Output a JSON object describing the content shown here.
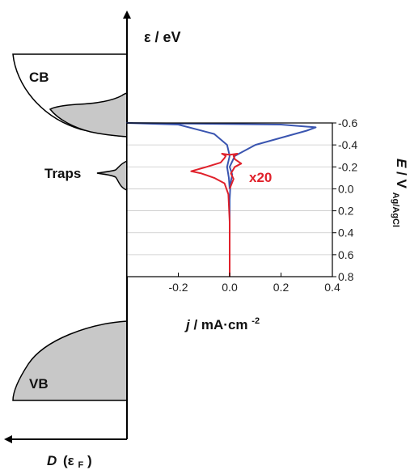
{
  "chart_data": {
    "type": "line",
    "energy_axis_label": "ε / eV",
    "dos_axis_label_main": "D",
    "dos_axis_label_paren": "(ε",
    "dos_axis_label_sub": "F",
    "dos_axis_label_close": ")",
    "band_labels": {
      "cb": "CB",
      "traps": "Traps",
      "vb": "VB"
    },
    "inset": {
      "xlabel_j": "j",
      "xlabel_rest": " / mA·cm",
      "xlabel_sup": "-2",
      "ylabel_E": "E",
      "ylabel_rest": " / V",
      "ylabel_sub": "Ag/AgCl",
      "xlim": [
        -0.4,
        0.4
      ],
      "ylim": [
        0.8,
        -0.6
      ],
      "xticks": [
        "-0.2",
        "0.0",
        "0.2",
        "0.4"
      ],
      "xtick_values": [
        -0.2,
        0.0,
        0.2,
        0.4
      ],
      "yticks": [
        "-0.6",
        "-0.4",
        "-0.2",
        "0.0",
        "0.2",
        "0.4",
        "0.6",
        "0.8"
      ],
      "ytick_values": [
        -0.6,
        -0.4,
        -0.2,
        0.0,
        0.2,
        0.4,
        0.6,
        0.8
      ],
      "grid": true,
      "annotation": "x20",
      "series": [
        {
          "color": "#3a55b0",
          "points": [
            [
              0.0,
              0.8
            ],
            [
              0.0,
              0.4
            ],
            [
              0.0,
              0.1
            ],
            [
              0.003,
              -0.05
            ],
            [
              0.01,
              -0.13
            ],
            [
              0.0,
              -0.2
            ],
            [
              0.02,
              -0.3
            ],
            [
              0.1,
              -0.4
            ],
            [
              0.3,
              -0.53
            ],
            [
              0.335,
              -0.56
            ],
            [
              0.2,
              -0.585
            ],
            [
              -0.4,
              -0.6
            ],
            [
              -0.2,
              -0.585
            ],
            [
              -0.06,
              -0.5
            ],
            [
              -0.01,
              -0.4
            ],
            [
              0.0,
              -0.3
            ],
            [
              -0.01,
              -0.2
            ],
            [
              -0.003,
              -0.1
            ],
            [
              0.0,
              0.0
            ]
          ]
        },
        {
          "color": "#e0212b",
          "points": [
            [
              0.0,
              0.8
            ],
            [
              0.0,
              0.3
            ],
            [
              -0.005,
              0.05
            ],
            [
              -0.02,
              -0.05
            ],
            [
              -0.06,
              -0.1
            ],
            [
              -0.11,
              -0.14
            ],
            [
              -0.15,
              -0.16
            ],
            [
              -0.09,
              -0.2
            ],
            [
              -0.035,
              -0.24
            ],
            [
              -0.02,
              -0.28
            ],
            [
              -0.015,
              -0.3
            ],
            [
              -0.03,
              -0.32
            ],
            [
              0.0,
              -0.31
            ],
            [
              0.03,
              -0.32
            ],
            [
              0.015,
              -0.3
            ],
            [
              0.02,
              -0.27
            ],
            [
              0.045,
              -0.23
            ],
            [
              0.02,
              -0.2
            ],
            [
              0.005,
              -0.14
            ],
            [
              0.015,
              -0.09
            ],
            [
              0.0,
              0.0
            ]
          ]
        }
      ]
    }
  }
}
